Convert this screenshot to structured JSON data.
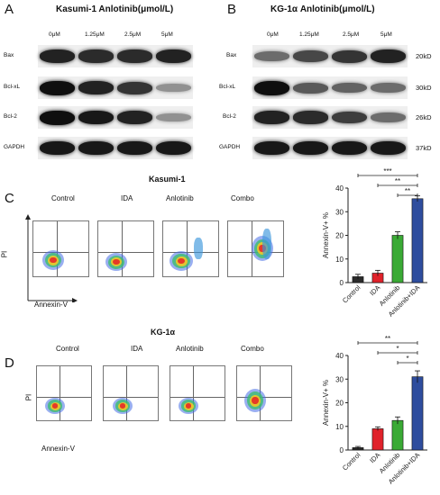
{
  "panels": {
    "A": {
      "letter": "A",
      "title": "Kasumi-1   Anlotinib(μmol/L)",
      "concentrations": [
        "0μM",
        "1.25μM",
        "2.5μM",
        "5μM"
      ],
      "rows": [
        {
          "label": "Bax",
          "intensity": [
            0.9,
            0.85,
            0.85,
            0.9
          ]
        },
        {
          "label": "Bcl-xL",
          "intensity": [
            1.0,
            0.9,
            0.8,
            0.3
          ]
        },
        {
          "label": "Bcl-2",
          "intensity": [
            1.0,
            0.95,
            0.9,
            0.3
          ]
        },
        {
          "label": "GAPDH",
          "intensity": [
            0.95,
            0.95,
            0.95,
            0.95
          ]
        }
      ]
    },
    "B": {
      "letter": "B",
      "title": "KG-1α   Anlotinib(μmol/L)",
      "concentrations": [
        "0μM",
        "1.25μM",
        "2.5μM",
        "5μM"
      ],
      "rows": [
        {
          "label": "Bax",
          "kd": "20kD",
          "intensity": [
            0.5,
            0.7,
            0.8,
            0.9
          ]
        },
        {
          "label": "Bcl-xL",
          "kd": "30kD",
          "intensity": [
            1.0,
            0.6,
            0.55,
            0.5
          ]
        },
        {
          "label": "Bcl-2",
          "kd": "26kD",
          "intensity": [
            0.9,
            0.85,
            0.75,
            0.5
          ]
        },
        {
          "label": "GAPDH",
          "kd": "37kD",
          "intensity": [
            0.95,
            0.95,
            0.95,
            0.95
          ]
        }
      ]
    },
    "C": {
      "letter": "C",
      "title": "Kasumi-1",
      "conditions": [
        "Control",
        "IDA",
        "Anlotinib",
        "Combo"
      ],
      "y_axis_label": "PI",
      "x_axis_label": "Annexin-V"
    },
    "D": {
      "letter": "D",
      "title": "KG-1α",
      "conditions": [
        "Control",
        "IDA",
        "Anlotinib",
        "Combo"
      ],
      "y_axis_label": "PI",
      "x_axis_label": "Annexin-V"
    }
  },
  "chart_data": [
    {
      "type": "bar",
      "categories": [
        "Control",
        "IDA",
        "Anlotinib",
        "Anlotinib+IDA"
      ],
      "values": [
        2.5,
        4,
        20,
        35.5
      ],
      "errors": [
        1,
        1.2,
        1.5,
        1.2
      ],
      "colors": [
        "#2b2b2b",
        "#e0222b",
        "#3aaa35",
        "#2e4d9e"
      ],
      "ylabel": "Annexin-V+ %",
      "ylim": [
        0,
        40
      ],
      "yticks": [
        0,
        10,
        20,
        30,
        40
      ],
      "significance": [
        {
          "from": 0,
          "to": 3,
          "label": "***"
        },
        {
          "from": 1,
          "to": 3,
          "label": "**"
        },
        {
          "from": 2,
          "to": 3,
          "label": "**"
        }
      ]
    },
    {
      "type": "bar",
      "categories": [
        "Control",
        "IDA",
        "Anlotinib",
        "Anlotinib+IDA"
      ],
      "values": [
        1,
        9,
        12.5,
        31
      ],
      "errors": [
        0.5,
        0.8,
        1.5,
        2.5
      ],
      "colors": [
        "#2b2b2b",
        "#e0222b",
        "#3aaa35",
        "#2e4d9e"
      ],
      "ylabel": "Annexin-V+ %",
      "ylim": [
        0,
        40
      ],
      "yticks": [
        0,
        10,
        20,
        30,
        40
      ],
      "significance": [
        {
          "from": 0,
          "to": 3,
          "label": "**"
        },
        {
          "from": 1,
          "to": 3,
          "label": "*"
        },
        {
          "from": 2,
          "to": 3,
          "label": "*"
        }
      ]
    }
  ]
}
